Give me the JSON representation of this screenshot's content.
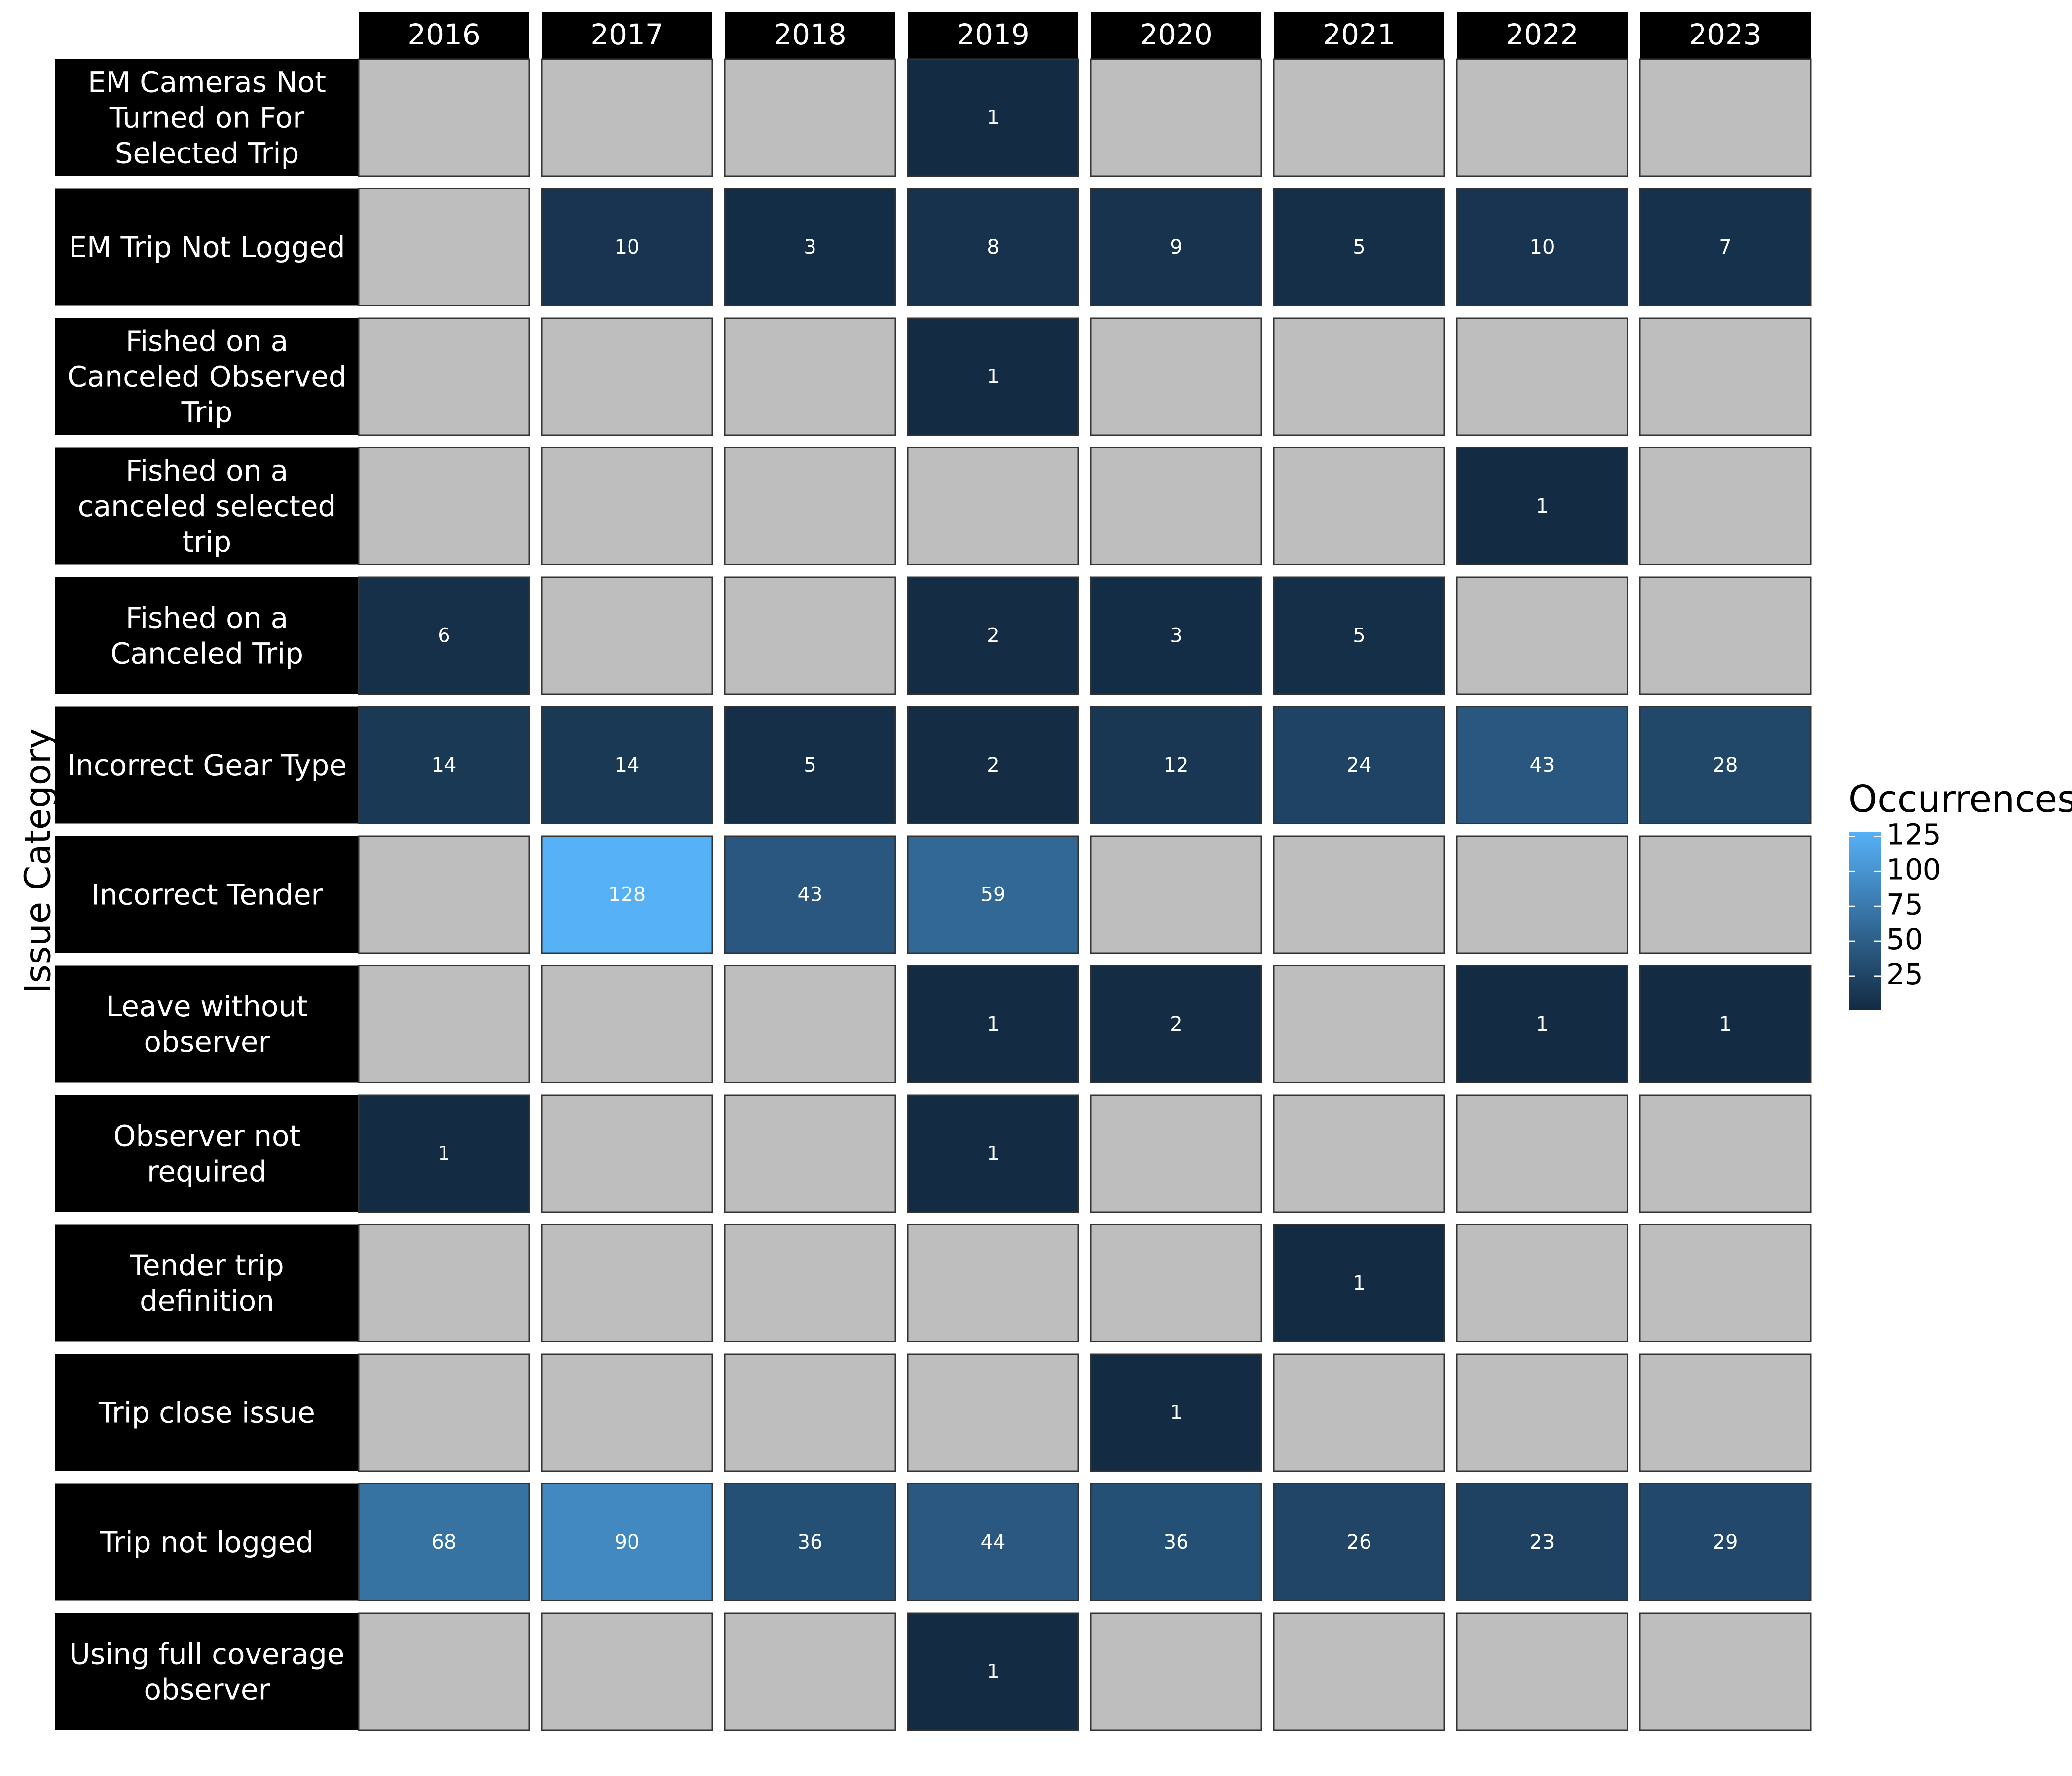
{
  "chart_data": {
    "type": "heatmap",
    "ylabel": "Issue Category",
    "xlabel": "",
    "title": "",
    "columns": [
      "2016",
      "2017",
      "2018",
      "2019",
      "2020",
      "2021",
      "2022",
      "2023"
    ],
    "rows": [
      "EM Cameras Not Turned on For Selected Trip",
      "EM Trip Not Logged",
      "Fished on a Canceled Observed Trip",
      "Fished on a canceled selected trip",
      "Fished on a Canceled Trip",
      "Incorrect Gear Type",
      "Incorrect Tender",
      "Leave without observer",
      "Observer not required",
      "Tender trip definition",
      "Trip close issue",
      "Trip not logged",
      "Using full coverage observer"
    ],
    "values": [
      [
        null,
        null,
        null,
        1,
        null,
        null,
        null,
        null
      ],
      [
        null,
        10,
        3,
        8,
        9,
        5,
        10,
        7
      ],
      [
        null,
        null,
        null,
        1,
        null,
        null,
        null,
        null
      ],
      [
        null,
        null,
        null,
        null,
        null,
        null,
        1,
        null
      ],
      [
        6,
        null,
        null,
        2,
        3,
        5,
        null,
        null
      ],
      [
        14,
        14,
        5,
        2,
        12,
        24,
        43,
        28
      ],
      [
        null,
        128,
        43,
        59,
        null,
        null,
        null,
        null
      ],
      [
        null,
        null,
        null,
        1,
        2,
        null,
        1,
        1
      ],
      [
        1,
        null,
        null,
        1,
        null,
        null,
        null,
        null
      ],
      [
        null,
        null,
        null,
        null,
        null,
        1,
        null,
        null
      ],
      [
        null,
        null,
        null,
        null,
        1,
        null,
        null,
        null
      ],
      [
        68,
        90,
        36,
        44,
        36,
        26,
        23,
        29
      ],
      [
        null,
        null,
        null,
        1,
        null,
        null,
        null,
        null
      ]
    ],
    "legend": {
      "title": "Occurrences",
      "ticks": [
        "125",
        "100",
        "75",
        "50",
        "25"
      ],
      "tick_values": [
        125,
        100,
        75,
        50,
        25
      ],
      "range": [
        1,
        128
      ],
      "position": "right"
    },
    "colors": {
      "low": "#132b43",
      "high": "#56b1f7",
      "missing": "#bebebe",
      "strip": "#000000"
    }
  }
}
